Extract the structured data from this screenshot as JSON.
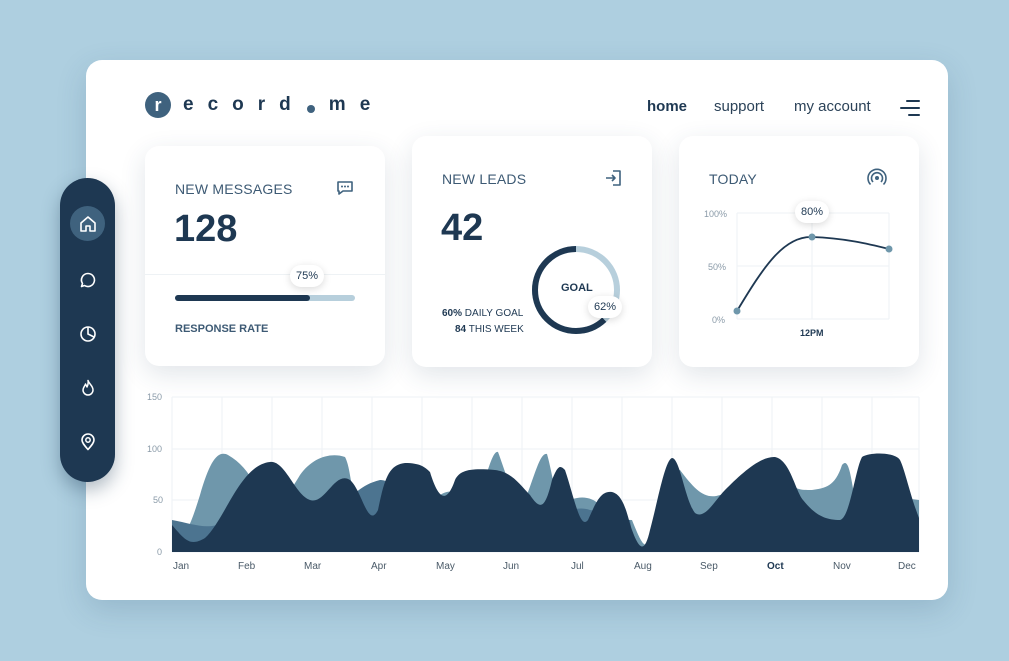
{
  "brand": {
    "first": "r",
    "letters": [
      "e",
      "c",
      "o",
      "r",
      "d"
    ],
    "end_letters": [
      "m",
      "e"
    ]
  },
  "nav": {
    "home": "home",
    "support": "support",
    "account": "my account"
  },
  "cards": {
    "messages": {
      "title": "NEW MESSAGES",
      "value": "128",
      "rate_pct": "75%",
      "rate_value": 0.75,
      "rate_label": "RESPONSE RATE"
    },
    "leads": {
      "title": "NEW LEADS",
      "value": "42",
      "daily_pct": "60%",
      "daily_label": "DAILY GOAL",
      "week_value": "84",
      "week_label": "THIS WEEK",
      "goal_label": "GOAL",
      "goal_pct": "62%",
      "goal_value": 0.62
    },
    "today": {
      "title": "TODAY",
      "y_ticks": [
        "100%",
        "50%",
        "0%"
      ],
      "x_label": "12PM",
      "peak_label": "80%"
    }
  },
  "sidebar": [
    "home-icon",
    "chat-icon",
    "pie-chart-icon",
    "fire-icon",
    "location-icon"
  ],
  "chart_data": {
    "type": "area",
    "title": "",
    "categories": [
      "Jan",
      "Feb",
      "Mar",
      "Apr",
      "May",
      "Jun",
      "Jul",
      "Aug",
      "Sep",
      "Oct",
      "Nov",
      "Dec"
    ],
    "y_ticks": [
      "150",
      "100",
      "50",
      "0"
    ],
    "ylim": [
      0,
      150
    ],
    "highlight": "Oct"
  },
  "colors": {
    "navy": "#1e3852",
    "steel": "#3f627e",
    "light_blue": "#aecfe0",
    "area_light": "#6f97ab",
    "area_mid": "#4c7490"
  }
}
